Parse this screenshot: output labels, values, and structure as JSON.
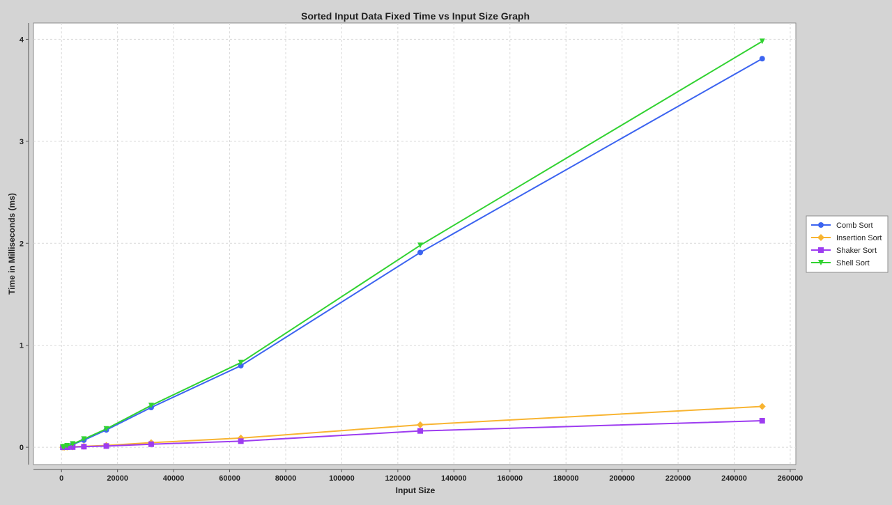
{
  "chart_data": {
    "type": "line",
    "title": "Sorted Input Data Fixed Time vs Input Size Graph",
    "xlabel": "Input Size",
    "ylabel": "Time in Milliseconds (ms)",
    "xlim": [
      -10000,
      262000
    ],
    "ylim": [
      -0.17,
      4.16
    ],
    "xticks": [
      0,
      20000,
      40000,
      60000,
      80000,
      100000,
      120000,
      140000,
      160000,
      180000,
      200000,
      220000,
      240000,
      260000
    ],
    "yticks": [
      0,
      1,
      2,
      3,
      4
    ],
    "grid": true,
    "legend_position": "right",
    "x": [
      500,
      1000,
      2000,
      4000,
      8000,
      16000,
      32000,
      64000,
      128000,
      250000
    ],
    "series": [
      {
        "name": "Comb Sort",
        "color": "#3c64f0",
        "marker": "circle",
        "values": [
          0.002,
          0.005,
          0.012,
          0.028,
          0.07,
          0.17,
          0.39,
          0.8,
          1.91,
          3.81
        ]
      },
      {
        "name": "Insertion Sort",
        "color": "#f8b431",
        "marker": "diamond",
        "values": [
          0.0,
          0.001,
          0.002,
          0.004,
          0.009,
          0.018,
          0.045,
          0.09,
          0.22,
          0.4
        ]
      },
      {
        "name": "Shaker Sort",
        "color": "#9d3cf0",
        "marker": "square",
        "values": [
          0.0,
          0.001,
          0.001,
          0.002,
          0.006,
          0.012,
          0.03,
          0.06,
          0.16,
          0.26
        ]
      },
      {
        "name": "Shell Sort",
        "color": "#32d232",
        "marker": "triangle-down",
        "values": [
          0.003,
          0.006,
          0.014,
          0.032,
          0.08,
          0.18,
          0.41,
          0.83,
          1.98,
          3.98
        ]
      }
    ]
  }
}
